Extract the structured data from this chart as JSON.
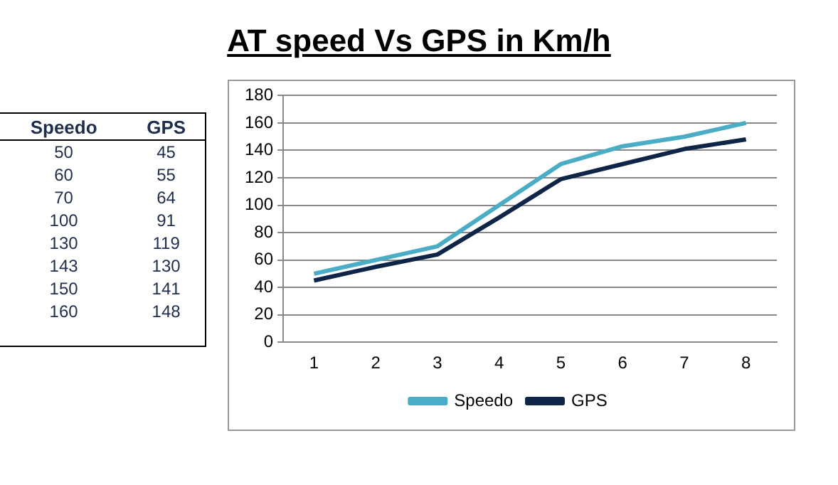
{
  "chart_data": [
    {
      "type": "other",
      "categories": [
        "Speedo",
        "GPS"
      ],
      "annotations": [
        "50",
        "45",
        "60",
        "55",
        "70",
        "64",
        "100",
        "91",
        "130",
        "119",
        "143",
        "130",
        "150",
        "141",
        "160",
        "148"
      ]
    },
    {
      "type": "line",
      "title": "AT speed Vs GPS in Km/h",
      "categories": [
        "1",
        "2",
        "3",
        "4",
        "5",
        "6",
        "7",
        "8"
      ],
      "series": [
        {
          "name": "Speedo",
          "color": "#4bacc6",
          "values": [
            50,
            60,
            70,
            100,
            130,
            143,
            150,
            160
          ]
        },
        {
          "name": "GPS",
          "color": "#0f2548",
          "values": [
            45,
            55,
            64,
            91,
            119,
            130,
            141,
            148
          ]
        }
      ],
      "ylim": [
        0,
        180
      ],
      "yticks": [
        0,
        20,
        40,
        60,
        80,
        100,
        120,
        140,
        160,
        180
      ],
      "grid": "y",
      "legend": "bottom",
      "marker": "none",
      "line_style": "solid"
    }
  ]
}
